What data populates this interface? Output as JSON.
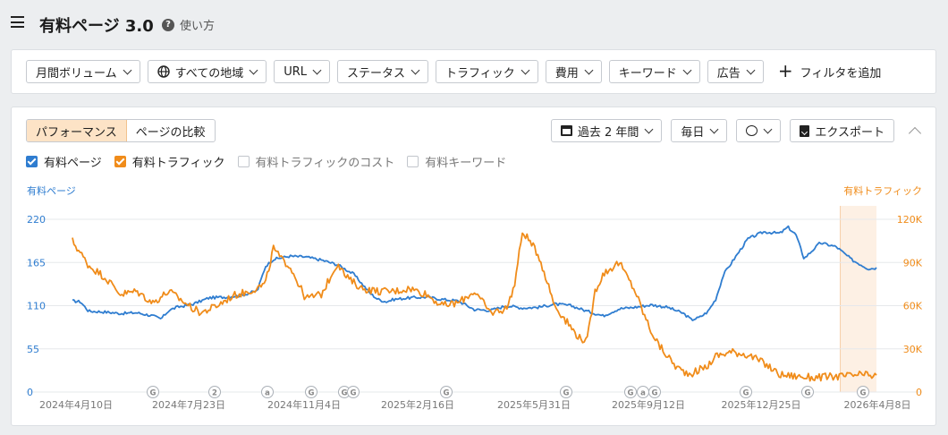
{
  "header": {
    "title": "有料ページ 3.0",
    "help_label": "使い方"
  },
  "filters": {
    "items": [
      "月間ボリューム",
      "すべての地域",
      "URL",
      "ステータス",
      "トラフィック",
      "費用",
      "キーワード",
      "広告"
    ],
    "add_label": "フィルタを追加"
  },
  "view_tabs": {
    "performance": "パフォーマンス",
    "compare": "ページの比較"
  },
  "controls": {
    "period": "過去 2 年間",
    "interval": "毎日",
    "export": "エクスポート"
  },
  "legend": {
    "items": [
      {
        "label": "有料ページ",
        "checked": true,
        "color": "#2f7dd0"
      },
      {
        "label": "有料トラフィック",
        "checked": true,
        "color": "#f08c1a"
      },
      {
        "label": "有料トラフィックのコスト",
        "checked": false
      },
      {
        "label": "有料キーワード",
        "checked": false
      }
    ]
  },
  "chart_data": {
    "type": "line",
    "left_axis_label": "有料ページ",
    "right_axis_label": "有料トラフィック",
    "left_ticks": [
      "220",
      "165",
      "110",
      "55",
      "0"
    ],
    "right_ticks": [
      "120K",
      "90K",
      "60K",
      "30K",
      "0"
    ],
    "ylim_left": [
      0,
      220
    ],
    "ylim_right": [
      0,
      120000
    ],
    "x_labels": [
      "2024年4月10日",
      "2024年7月23日",
      "2024年11月4日",
      "2025年2月16日",
      "2025年5月31日",
      "2025年9月12日",
      "2025年12月25日",
      "2026年4月8日"
    ],
    "grid": true,
    "markers": [
      "G",
      "2",
      "a",
      "G",
      "G",
      "G",
      "G",
      "G",
      "G",
      "a",
      "G",
      "G",
      "G",
      "G"
    ],
    "series": [
      {
        "name": "有料ページ",
        "axis": "left",
        "color": "#2f7dd0",
        "x": [
          0,
          0.01,
          0.02,
          0.04,
          0.06,
          0.08,
          0.1,
          0.11,
          0.12,
          0.13,
          0.14,
          0.15,
          0.17,
          0.19,
          0.21,
          0.23,
          0.24,
          0.25,
          0.26,
          0.27,
          0.29,
          0.31,
          0.33,
          0.35,
          0.37,
          0.38,
          0.39,
          0.4,
          0.42,
          0.44,
          0.46,
          0.48,
          0.5,
          0.52,
          0.54,
          0.56,
          0.58,
          0.6,
          0.62,
          0.64,
          0.66,
          0.68,
          0.7,
          0.72,
          0.74,
          0.76,
          0.77,
          0.78,
          0.79,
          0.8,
          0.81,
          0.82,
          0.84,
          0.86,
          0.88,
          0.89,
          0.9,
          0.91,
          0.93,
          0.95,
          0.97,
          0.99,
          1.0
        ],
        "y": [
          116,
          115,
          103,
          102,
          100,
          101,
          97,
          93,
          104,
          108,
          110,
          112,
          120,
          121,
          123,
          129,
          160,
          169,
          171,
          173,
          172,
          168,
          162,
          150,
          126,
          118,
          115,
          118,
          120,
          121,
          118,
          116,
          105,
          104,
          110,
          107,
          108,
          112,
          110,
          103,
          97,
          106,
          108,
          111,
          108,
          100,
          92,
          95,
          102,
          118,
          150,
          165,
          195,
          204,
          202,
          210,
          200,
          170,
          190,
          185,
          168,
          157,
          158
        ]
      },
      {
        "name": "有料トラフィック",
        "axis": "right",
        "color": "#f08c1a",
        "x": [
          0,
          0.02,
          0.04,
          0.06,
          0.08,
          0.1,
          0.12,
          0.14,
          0.15,
          0.16,
          0.18,
          0.2,
          0.22,
          0.24,
          0.25,
          0.26,
          0.27,
          0.29,
          0.31,
          0.33,
          0.34,
          0.36,
          0.38,
          0.4,
          0.42,
          0.44,
          0.46,
          0.48,
          0.5,
          0.52,
          0.54,
          0.55,
          0.56,
          0.58,
          0.6,
          0.62,
          0.63,
          0.64,
          0.65,
          0.66,
          0.68,
          0.7,
          0.71,
          0.72,
          0.73,
          0.74,
          0.75,
          0.76,
          0.77,
          0.79,
          0.8,
          0.82,
          0.84,
          0.86,
          0.88,
          0.9,
          0.92,
          0.94,
          0.96,
          0.98,
          1.0
        ],
        "y": [
          105000,
          88000,
          80000,
          68000,
          70000,
          62000,
          70000,
          62000,
          58000,
          55000,
          60000,
          67000,
          70000,
          75000,
          100000,
          92000,
          88000,
          65000,
          68000,
          90000,
          80000,
          72000,
          70000,
          70000,
          72000,
          68000,
          60000,
          62000,
          70000,
          55000,
          58000,
          75000,
          112000,
          95000,
          60000,
          45000,
          38000,
          35000,
          70000,
          82000,
          90000,
          70000,
          55000,
          42000,
          32000,
          25000,
          18000,
          14000,
          13000,
          18000,
          25000,
          28000,
          26000,
          20000,
          12000,
          11000,
          10000,
          10500,
          11000,
          12000,
          11000
        ]
      }
    ]
  }
}
